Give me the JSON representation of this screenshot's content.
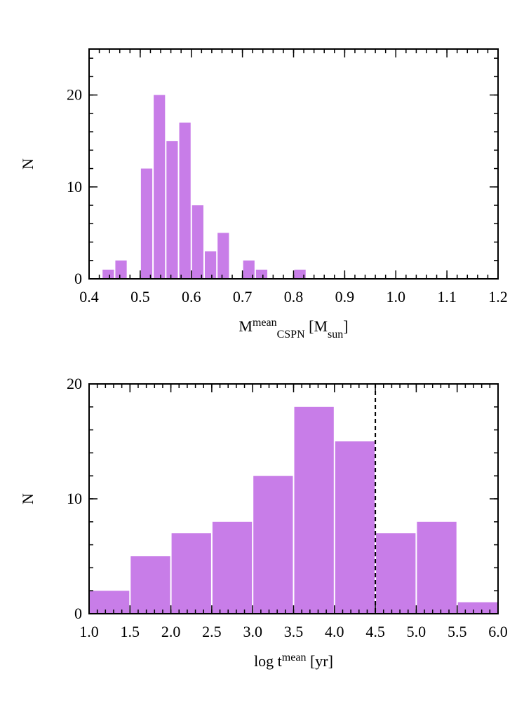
{
  "chart_data": [
    {
      "type": "histogram",
      "color": "#c87de8",
      "bins": [
        0.425,
        0.45,
        0.475,
        0.5,
        0.525,
        0.55,
        0.575,
        0.6,
        0.625,
        0.65,
        0.675,
        0.7,
        0.725,
        0.75,
        0.775,
        0.8,
        0.825
      ],
      "values": [
        1,
        2,
        0,
        12,
        20,
        15,
        17,
        8,
        3,
        5,
        0,
        2,
        1,
        0,
        0,
        1
      ],
      "xlim": [
        0.4,
        1.2
      ],
      "ylim": [
        0,
        25
      ],
      "xticks": [
        0.4,
        0.5,
        0.6,
        0.7,
        0.8,
        0.9,
        {
          "value": 1,
          "label": "1.0"
        },
        1.1,
        1.2
      ],
      "yticks": [
        0,
        10,
        20
      ],
      "xminor": 0.02,
      "yminor": 2,
      "xlabel": [
        {
          "text": "M"
        },
        {
          "text": "mean",
          "shift": "super"
        },
        {
          "text": "CSPN",
          "shift": "sub"
        },
        {
          "text": " [M"
        },
        {
          "text": "sun",
          "shift": "sub"
        },
        {
          "text": "]"
        }
      ],
      "ylabel": "N"
    },
    {
      "type": "histogram",
      "color": "#c87de8",
      "bins": [
        1,
        1.5,
        2,
        2.5,
        3,
        3.5,
        4,
        4.5,
        5,
        5.5,
        6
      ],
      "values": [
        2,
        5,
        7,
        8,
        12,
        18,
        15,
        7,
        8,
        1
      ],
      "xlim": [
        1,
        6
      ],
      "ylim": [
        0,
        20
      ],
      "xticks": [
        {
          "value": 1,
          "label": "1.0"
        },
        1.5,
        {
          "value": 2,
          "label": "2.0"
        },
        2.5,
        {
          "value": 3,
          "label": "3.0"
        },
        3.5,
        {
          "value": 4,
          "label": "4.0"
        },
        4.5,
        {
          "value": 5,
          "label": "5.0"
        },
        5.5,
        {
          "value": 6,
          "label": "6.0"
        }
      ],
      "yticks": [
        0,
        10,
        20
      ],
      "xminor": 0.1,
      "yminor": 2,
      "vline": 4.5,
      "xlabel": [
        {
          "text": "log t"
        },
        {
          "text": "mean",
          "shift": "super"
        },
        {
          "text": " [yr]"
        }
      ],
      "ylabel": "N"
    }
  ]
}
